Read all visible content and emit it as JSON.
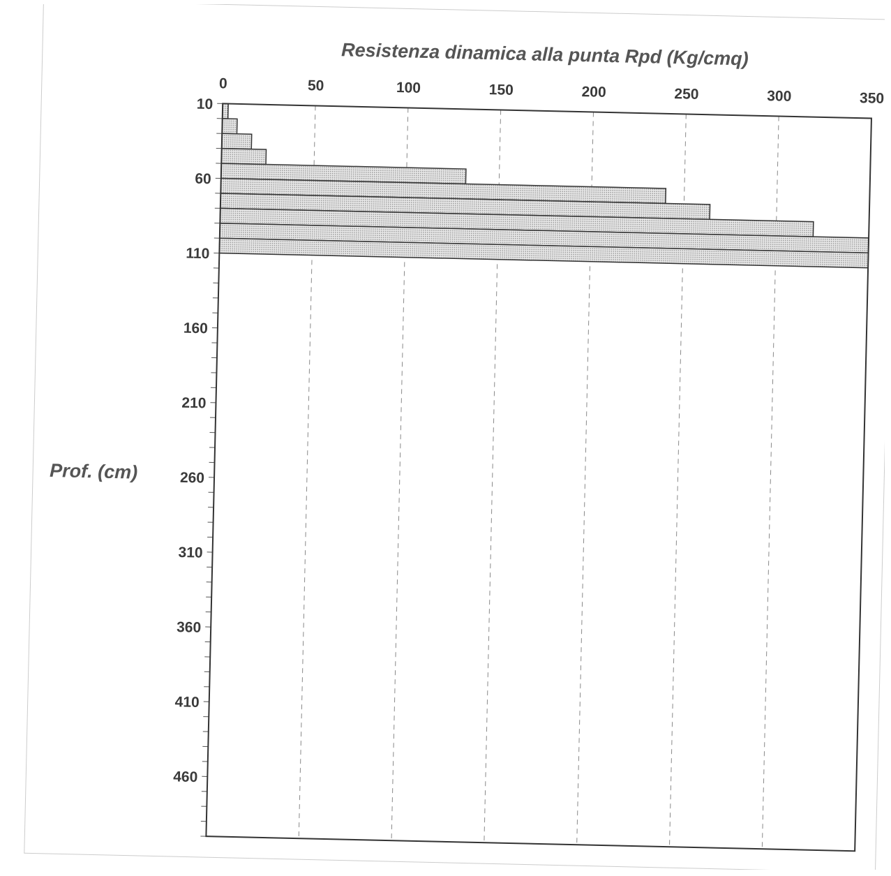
{
  "chart_data": {
    "type": "bar",
    "orientation": "horizontal",
    "title": "",
    "xlabel": "Resistenza dinamica alla punta Rpd (Kg/cmq)",
    "ylabel": "Prof. (cm)",
    "xlim": [
      0,
      350
    ],
    "xticks": [
      "0",
      "50",
      "100",
      "150",
      "200",
      "250",
      "300",
      "350"
    ],
    "ylim": [
      10,
      500
    ],
    "yticks": [
      "10",
      "60",
      "110",
      "160",
      "210",
      "260",
      "310",
      "360",
      "410",
      "460"
    ],
    "grid": "vertical dashed",
    "fill": "#cfcfcf",
    "depth_step": 10,
    "depths": [
      10,
      20,
      30,
      40,
      50,
      60,
      70,
      80,
      90,
      100
    ],
    "values": [
      3,
      8,
      16,
      24,
      132,
      240,
      264,
      320,
      350,
      350
    ]
  }
}
